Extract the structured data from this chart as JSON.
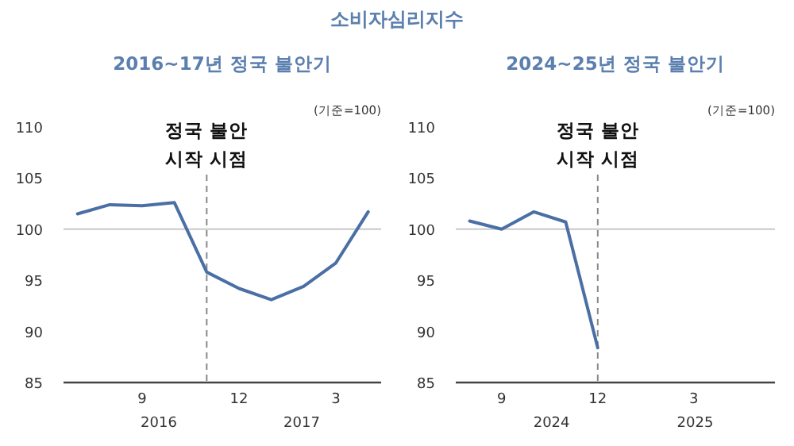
{
  "chart_data": [
    {
      "type": "line",
      "title": "소비자심리지수",
      "subtitle": "2016~17년 정국 불안기",
      "x": [
        "2016-07",
        "2016-08",
        "2016-09",
        "2016-10",
        "2016-11",
        "2016-12",
        "2017-01",
        "2017-02",
        "2017-03",
        "2017-04"
      ],
      "series": [
        {
          "color": "#4a6fa5",
          "values": [
            101.5,
            102.4,
            102.3,
            102.6,
            95.8,
            94.2,
            93.1,
            94.4,
            96.7,
            101.7
          ]
        }
      ],
      "xlim": [
        "2016-06-18",
        "2017-04-13"
      ],
      "xticks": [
        {
          "value": "2016-09",
          "label": "9"
        },
        {
          "value": "2016-12",
          "label": "12"
        },
        {
          "value": "2017-03",
          "label": "3"
        }
      ],
      "ylim": [
        85,
        110
      ],
      "yticks": [
        85,
        90,
        95,
        100,
        105,
        110
      ],
      "grid": false,
      "marker": "none",
      "line_style": "solid",
      "ref_lines": [
        {
          "axis": "y",
          "value": 100,
          "color": "#c8c8c8"
        },
        {
          "axis": "x",
          "value": "2016-11",
          "label": "정국 불안 시작 시점",
          "color": "#888888",
          "line_style": "dashed"
        }
      ],
      "annotations": [
        "(기준=100)",
        "2016",
        "2017"
      ]
    },
    {
      "type": "line",
      "subtitle": "2024~25년 정국 불안기",
      "x": [
        "2024-08",
        "2024-09",
        "2024-10",
        "2024-11",
        "2024-12"
      ],
      "series": [
        {
          "color": "#4a6fa5",
          "values": [
            100.8,
            100.0,
            101.7,
            100.7,
            88.4
          ]
        }
      ],
      "xlim": [
        "2024-07-18",
        "2025-05-17"
      ],
      "xticks": [
        {
          "value": "2024-09",
          "label": "9"
        },
        {
          "value": "2024-12",
          "label": "12"
        },
        {
          "value": "2025-03",
          "label": "3"
        }
      ],
      "ylim": [
        85,
        110
      ],
      "yticks": [
        85,
        90,
        95,
        100,
        105,
        110
      ],
      "grid": false,
      "marker": "none",
      "line_style": "solid",
      "ref_lines": [
        {
          "axis": "y",
          "value": 100,
          "color": "#c8c8c8"
        },
        {
          "axis": "x",
          "value": "2024-12",
          "label": "정국 불안 시작 시점",
          "color": "#888888",
          "line_style": "dashed"
        }
      ],
      "annotations": [
        "(기준=100)",
        "2024",
        "2025"
      ]
    }
  ]
}
